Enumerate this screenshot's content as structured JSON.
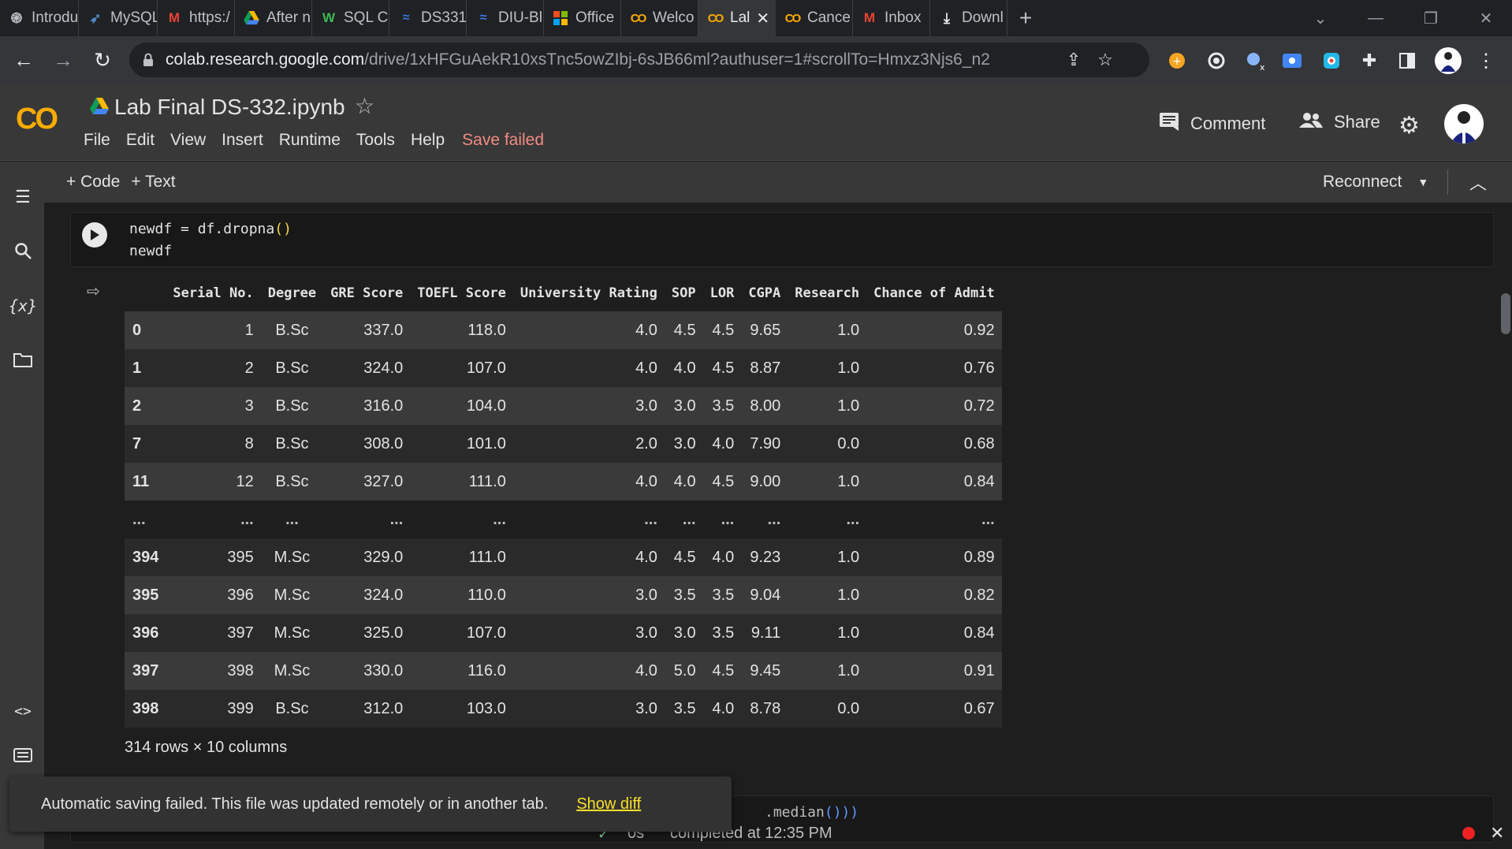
{
  "browser": {
    "tabs": [
      {
        "label": "Introdu",
        "icon": "openai-icon"
      },
      {
        "label": "MySQL",
        "icon": "mysql-icon"
      },
      {
        "label": "https:/",
        "icon": "gmail-icon"
      },
      {
        "label": "After n",
        "icon": "drive-icon"
      },
      {
        "label": "SQL Cl",
        "icon": "w-icon"
      },
      {
        "label": "DS331",
        "icon": "diu-icon"
      },
      {
        "label": "DIU-Bl",
        "icon": "diu-icon"
      },
      {
        "label": "Office",
        "icon": "office-icon"
      },
      {
        "label": "Welco",
        "icon": "colab-icon"
      },
      {
        "label": "Lal",
        "icon": "colab-icon",
        "active": true
      },
      {
        "label": "Cance",
        "icon": "colab-icon"
      },
      {
        "label": "Inbox",
        "icon": "gmail-icon"
      },
      {
        "label": "Downl",
        "icon": "download-icon"
      }
    ],
    "url_host": "colab.research.google.com",
    "url_path": "/drive/1xHFGuAekR10xsTnc5owZIbj-6sJB66ml?authuser=1#scrollTo=Hmxz3Njs6_n2"
  },
  "colab": {
    "title": "Lab Final DS-332.ipynb",
    "menu": [
      "File",
      "Edit",
      "View",
      "Insert",
      "Runtime",
      "Tools",
      "Help"
    ],
    "save_status": "Save failed",
    "comment_label": "Comment",
    "share_label": "Share",
    "add_code_label": "+ Code",
    "add_text_label": "+ Text",
    "reconnect_label": "Reconnect",
    "accent_color": "#f9ab00"
  },
  "cell": {
    "line1_pre": "newdf = df.dropna",
    "line1_paren": "()",
    "line2": "newdf"
  },
  "dataframe": {
    "columns": [
      "",
      "Serial No.",
      "Degree",
      "GRE Score",
      "TOEFL Score",
      "University Rating",
      "SOP",
      "LOR",
      "CGPA",
      "Research",
      "Chance of Admit"
    ],
    "rows": [
      [
        "0",
        "1",
        "B.Sc",
        "337.0",
        "118.0",
        "4.0",
        "4.5",
        "4.5",
        "9.65",
        "1.0",
        "0.92"
      ],
      [
        "1",
        "2",
        "B.Sc",
        "324.0",
        "107.0",
        "4.0",
        "4.0",
        "4.5",
        "8.87",
        "1.0",
        "0.76"
      ],
      [
        "2",
        "3",
        "B.Sc",
        "316.0",
        "104.0",
        "3.0",
        "3.0",
        "3.5",
        "8.00",
        "1.0",
        "0.72"
      ],
      [
        "7",
        "8",
        "B.Sc",
        "308.0",
        "101.0",
        "2.0",
        "3.0",
        "4.0",
        "7.90",
        "0.0",
        "0.68"
      ],
      [
        "11",
        "12",
        "B.Sc",
        "327.0",
        "111.0",
        "4.0",
        "4.0",
        "4.5",
        "9.00",
        "1.0",
        "0.84"
      ],
      [
        "...",
        "...",
        "...",
        "...",
        "...",
        "...",
        "...",
        "...",
        "...",
        "...",
        "..."
      ],
      [
        "394",
        "395",
        "M.Sc",
        "329.0",
        "111.0",
        "4.0",
        "4.5",
        "4.0",
        "9.23",
        "1.0",
        "0.89"
      ],
      [
        "395",
        "396",
        "M.Sc",
        "324.0",
        "110.0",
        "3.0",
        "3.5",
        "3.5",
        "9.04",
        "1.0",
        "0.82"
      ],
      [
        "396",
        "397",
        "M.Sc",
        "325.0",
        "107.0",
        "3.0",
        "3.0",
        "3.5",
        "9.11",
        "1.0",
        "0.84"
      ],
      [
        "397",
        "398",
        "M.Sc",
        "330.0",
        "116.0",
        "4.0",
        "5.0",
        "4.5",
        "9.45",
        "1.0",
        "0.91"
      ],
      [
        "398",
        "399",
        "B.Sc",
        "312.0",
        "103.0",
        "3.0",
        "3.5",
        "4.0",
        "8.78",
        "0.0",
        "0.67"
      ]
    ],
    "shape": "314 rows × 10 columns"
  },
  "next_cell": {
    "code_pre": ".median",
    "code_paren": "()))"
  },
  "snackbar": {
    "message": "Automatic saving failed. This file was updated remotely or in another tab.",
    "action": "Show diff"
  },
  "status": {
    "exec_time": "0s",
    "text": "completed at 12:35 PM"
  }
}
